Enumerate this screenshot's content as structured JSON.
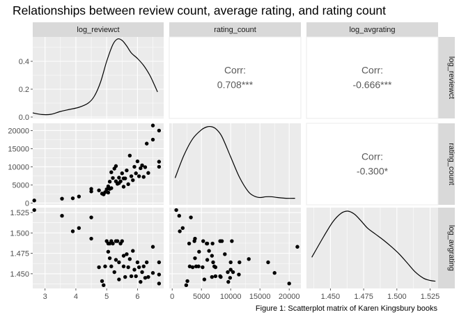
{
  "chart_data": {
    "type": "scatter",
    "title": "Relationships between review count, average rating, and rating count",
    "caption": "Figure 1: Scatterplot matrix of Karen Kingsbury books",
    "variables": [
      "log_reviewct",
      "rating_count",
      "log_avgrating"
    ],
    "axes": {
      "log_reviewct": {
        "range": [
          2.6,
          6.85
        ],
        "ticks": [
          3,
          4,
          5,
          6
        ],
        "tick_labels": [
          "3",
          "4",
          "5",
          "6"
        ]
      },
      "rating_count": {
        "range": [
          -500,
          22000
        ],
        "ticks": [
          0,
          5000,
          10000,
          15000,
          20000
        ],
        "tick_labels": [
          "0",
          "5000",
          "10000",
          "15000",
          "20000"
        ]
      },
      "log_avgrating": {
        "range": [
          1.432,
          1.531
        ],
        "ticks": [
          1.45,
          1.475,
          1.5,
          1.525
        ],
        "tick_labels": [
          "1.450",
          "1.475",
          "1.500",
          "1.525"
        ]
      }
    },
    "density_axis": {
      "range": [
        -0.01,
        0.575
      ],
      "ticks": [
        0.0,
        0.2,
        0.4
      ],
      "tick_labels": [
        "0.0",
        "0.2",
        "0.4"
      ]
    },
    "correlations": [
      {
        "row": "log_reviewct",
        "col": "rating_count",
        "label": "Corr:",
        "value": "0.708***"
      },
      {
        "row": "log_reviewct",
        "col": "log_avgrating",
        "label": "Corr:",
        "value": "-0.666***"
      },
      {
        "row": "rating_count",
        "col": "log_avgrating",
        "label": "Corr:",
        "value": "-0.300*"
      }
    ],
    "densities": {
      "log_reviewct": {
        "x": [
          2.6,
          2.9,
          3.2,
          3.5,
          3.8,
          4.1,
          4.4,
          4.6,
          4.8,
          5.0,
          5.2,
          5.35,
          5.5,
          5.65,
          5.8,
          6.0,
          6.2,
          6.4,
          6.55,
          6.65
        ],
        "y": [
          0.03,
          0.018,
          0.02,
          0.04,
          0.055,
          0.07,
          0.1,
          0.15,
          0.25,
          0.4,
          0.52,
          0.56,
          0.55,
          0.51,
          0.46,
          0.42,
          0.37,
          0.3,
          0.23,
          0.18
        ]
      },
      "rating_count": {
        "x": [
          500,
          2000,
          3500,
          5000,
          6000,
          6800,
          7500,
          8500,
          10000,
          11500,
          13000,
          14000,
          15000,
          16000,
          17000,
          18000,
          19500,
          21000
        ],
        "y": [
          0.32,
          0.62,
          0.84,
          0.96,
          1.0,
          1.0,
          0.97,
          0.87,
          0.6,
          0.33,
          0.14,
          0.08,
          0.06,
          0.07,
          0.07,
          0.06,
          0.05,
          0.05
        ]
      },
      "log_avgrating": {
        "x": [
          1.436,
          1.445,
          1.452,
          1.458,
          1.463,
          1.468,
          1.473,
          1.478,
          1.484,
          1.49,
          1.496,
          1.502,
          1.508,
          1.514,
          1.52,
          1.525,
          1.529
        ],
        "y": [
          0.38,
          0.66,
          0.86,
          0.97,
          1.0,
          0.96,
          0.87,
          0.77,
          0.69,
          0.61,
          0.52,
          0.42,
          0.3,
          0.18,
          0.1,
          0.07,
          0.06
        ]
      }
    },
    "scatter_points": [
      {
        "log_reviewct": 2.65,
        "rating_count": 700,
        "log_avgrating": 1.528
      },
      {
        "log_reviewct": 3.55,
        "rating_count": 1200,
        "log_avgrating": 1.521
      },
      {
        "log_reviewct": 3.9,
        "rating_count": 1300,
        "log_avgrating": 1.502
      },
      {
        "log_reviewct": 4.1,
        "rating_count": 1800,
        "log_avgrating": 1.506
      },
      {
        "log_reviewct": 4.5,
        "rating_count": 3200,
        "log_avgrating": 1.519
      },
      {
        "log_reviewct": 4.5,
        "rating_count": 3900,
        "log_avgrating": 1.493
      },
      {
        "log_reviewct": 4.75,
        "rating_count": 3500,
        "log_avgrating": 1.458
      },
      {
        "log_reviewct": 4.85,
        "rating_count": 2600,
        "log_avgrating": 1.441
      },
      {
        "log_reviewct": 4.9,
        "rating_count": 2400,
        "log_avgrating": 1.436
      },
      {
        "log_reviewct": 4.95,
        "rating_count": 3000,
        "log_avgrating": 1.459
      },
      {
        "log_reviewct": 5.0,
        "rating_count": 3800,
        "log_avgrating": 1.49
      },
      {
        "log_reviewct": 5.05,
        "rating_count": 2900,
        "log_avgrating": 1.487
      },
      {
        "log_reviewct": 5.05,
        "rating_count": 4600,
        "log_avgrating": 1.477
      },
      {
        "log_reviewct": 5.1,
        "rating_count": 3900,
        "log_avgrating": 1.469
      },
      {
        "log_reviewct": 5.1,
        "rating_count": 5900,
        "log_avgrating": 1.487
      },
      {
        "log_reviewct": 5.15,
        "rating_count": 4100,
        "log_avgrating": 1.459
      },
      {
        "log_reviewct": 5.15,
        "rating_count": 8500,
        "log_avgrating": 1.49
      },
      {
        "log_reviewct": 5.2,
        "rating_count": 6900,
        "log_avgrating": 1.487
      },
      {
        "log_reviewct": 5.25,
        "rating_count": 9500,
        "log_avgrating": 1.452
      },
      {
        "log_reviewct": 5.3,
        "rating_count": 10200,
        "log_avgrating": 1.49
      },
      {
        "log_reviewct": 5.3,
        "rating_count": 6000,
        "log_avgrating": 1.467
      },
      {
        "log_reviewct": 5.35,
        "rating_count": 5300,
        "log_avgrating": 1.49
      },
      {
        "log_reviewct": 5.4,
        "rating_count": 7000,
        "log_avgrating": 1.464
      },
      {
        "log_reviewct": 5.4,
        "rating_count": 5500,
        "log_avgrating": 1.443
      },
      {
        "log_reviewct": 5.45,
        "rating_count": 6000,
        "log_avgrating": 1.487
      },
      {
        "log_reviewct": 5.5,
        "rating_count": 8200,
        "log_avgrating": 1.49
      },
      {
        "log_reviewct": 5.55,
        "rating_count": 6800,
        "log_avgrating": 1.472
      },
      {
        "log_reviewct": 5.55,
        "rating_count": 4500,
        "log_avgrating": 1.459
      },
      {
        "log_reviewct": 5.6,
        "rating_count": 6800,
        "log_avgrating": 1.446
      },
      {
        "log_reviewct": 5.65,
        "rating_count": 9000,
        "log_avgrating": 1.474
      },
      {
        "log_reviewct": 5.7,
        "rating_count": 5200,
        "log_avgrating": 1.458
      },
      {
        "log_reviewct": 5.75,
        "rating_count": 13100,
        "log_avgrating": 1.468
      },
      {
        "log_reviewct": 5.8,
        "rating_count": 7400,
        "log_avgrating": 1.447
      },
      {
        "log_reviewct": 5.85,
        "rating_count": 6300,
        "log_avgrating": 1.478
      },
      {
        "log_reviewct": 5.9,
        "rating_count": 10000,
        "log_avgrating": 1.455
      },
      {
        "log_reviewct": 5.95,
        "rating_count": 8200,
        "log_avgrating": 1.447
      },
      {
        "log_reviewct": 6.0,
        "rating_count": 11500,
        "log_avgrating": 1.464
      },
      {
        "log_reviewct": 6.05,
        "rating_count": 7400,
        "log_avgrating": 1.458
      },
      {
        "log_reviewct": 6.1,
        "rating_count": 9600,
        "log_avgrating": 1.44
      },
      {
        "log_reviewct": 6.15,
        "rating_count": 10400,
        "log_avgrating": 1.452
      },
      {
        "log_reviewct": 6.2,
        "rating_count": 7200,
        "log_avgrating": 1.459
      },
      {
        "log_reviewct": 6.25,
        "rating_count": 9900,
        "log_avgrating": 1.445
      },
      {
        "log_reviewct": 6.3,
        "rating_count": 16400,
        "log_avgrating": 1.464
      },
      {
        "log_reviewct": 6.35,
        "rating_count": 8300,
        "log_avgrating": 1.446
      },
      {
        "log_reviewct": 6.5,
        "rating_count": 17500,
        "log_avgrating": 1.451
      },
      {
        "log_reviewct": 6.5,
        "rating_count": 21400,
        "log_avgrating": 1.483
      },
      {
        "log_reviewct": 6.7,
        "rating_count": 11400,
        "log_avgrating": 1.449
      },
      {
        "log_reviewct": 6.7,
        "rating_count": 10000,
        "log_avgrating": 1.464
      },
      {
        "log_reviewct": 6.7,
        "rating_count": 20000,
        "log_avgrating": 1.438
      }
    ],
    "grid": true,
    "colors": {
      "panel_bg": "#ebebeb",
      "grid_major": "#ffffff",
      "strip_bg": "#d9d9d9",
      "point": "#000000",
      "line": "#000000",
      "corr_text": "#595959"
    }
  }
}
